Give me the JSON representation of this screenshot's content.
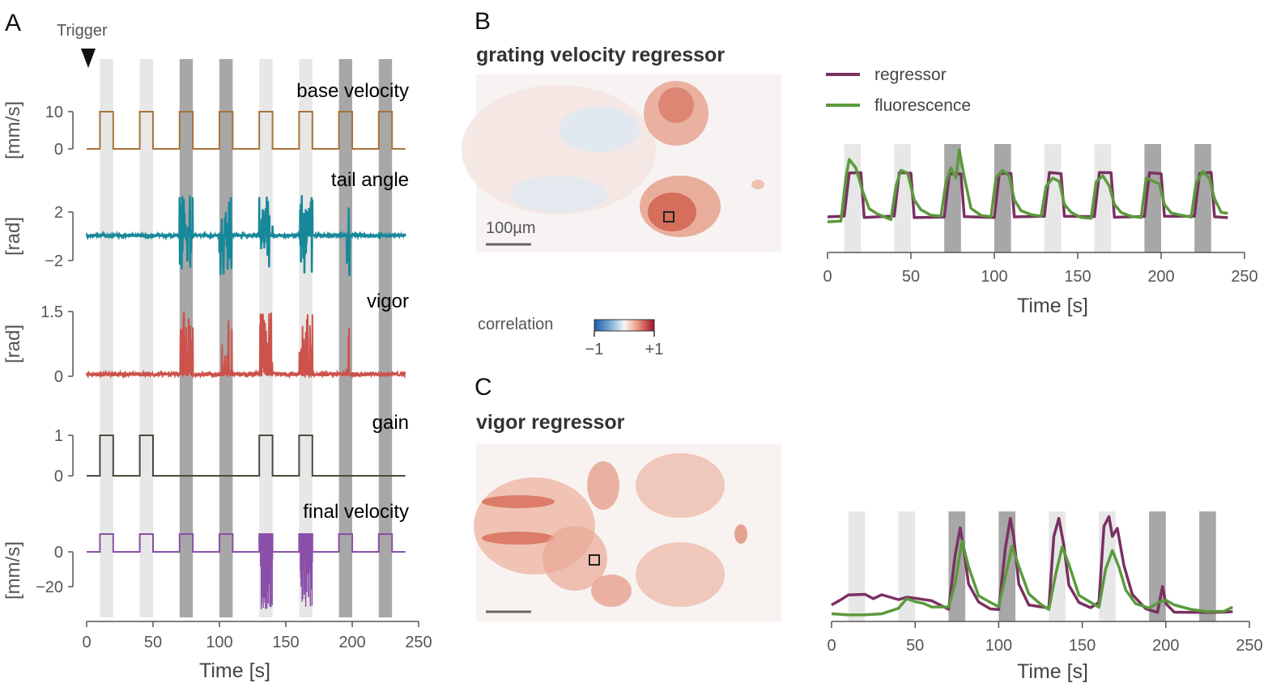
{
  "panels": {
    "A": "A",
    "B": "B",
    "C": "C"
  },
  "panel_a": {
    "trigger_label": "Trigger",
    "xlabel": "Time [s]",
    "xticks": [
      "0",
      "50",
      "100",
      "150",
      "200",
      "250"
    ]
  },
  "panel_b": {
    "title": "grating velocity regressor",
    "scalebar_label": "100µm",
    "colorbar_label": "correlation",
    "colorbar_min": "−1",
    "colorbar_max": "+1",
    "xlabel": "Time [s]",
    "xticks": [
      "0",
      "50",
      "100",
      "150",
      "200",
      "250"
    ],
    "legend": {
      "regressor": "regressor",
      "fluorescence": "fluorescence"
    }
  },
  "panel_c": {
    "title": "vigor regressor",
    "xlabel": "Time [s]",
    "xticks": [
      "0",
      "50",
      "100",
      "150",
      "200",
      "250"
    ]
  },
  "colors": {
    "base_velocity": "#a8733a",
    "tail_angle": "#17889a",
    "vigor": "#cc524b",
    "gain": "#4c4a3a",
    "final_velocity": "#8a4fa8",
    "regressor": "#7a3162",
    "fluorescence": "#5b9a3c",
    "light_stim": "#e6e7e6",
    "dark_stim": "#a7a7a7"
  },
  "chart_data": [
    {
      "type": "line",
      "panel": "A",
      "x_range": [
        0,
        250
      ],
      "stimulus_epochs": [
        {
          "start": 10,
          "end": 20,
          "shade": "light"
        },
        {
          "start": 40,
          "end": 50,
          "shade": "light"
        },
        {
          "start": 70,
          "end": 80,
          "shade": "dark"
        },
        {
          "start": 100,
          "end": 110,
          "shade": "dark"
        },
        {
          "start": 130,
          "end": 140,
          "shade": "light"
        },
        {
          "start": 160,
          "end": 170,
          "shade": "light"
        },
        {
          "start": 190,
          "end": 200,
          "shade": "dark"
        },
        {
          "start": 220,
          "end": 230,
          "shade": "dark"
        }
      ],
      "series": [
        {
          "name": "base velocity",
          "unit": "[mm/s]",
          "yticks": [
            "0",
            "10"
          ],
          "pulse_on": 10,
          "pulse_off": 0
        },
        {
          "name": "tail angle",
          "unit": "[rad]",
          "yticks": [
            "−2",
            "2"
          ],
          "baseline": 0,
          "bursts": [
            [
              70,
              80
            ],
            [
              100,
              110
            ],
            [
              130,
              140
            ],
            [
              160,
              170
            ],
            [
              196,
              198
            ]
          ]
        },
        {
          "name": "vigor",
          "unit": "[rad]",
          "yticks": [
            "0",
            "1.5"
          ],
          "baseline": 0,
          "bursts": [
            [
              70,
              80
            ],
            [
              100,
              110
            ],
            [
              130,
              140
            ],
            [
              160,
              170
            ],
            [
              196,
              198
            ]
          ]
        },
        {
          "name": "gain",
          "unit": "",
          "yticks": [
            "0",
            "1"
          ],
          "pulses": [
            [
              10,
              20,
              1
            ],
            [
              40,
              50,
              1
            ],
            [
              130,
              140,
              1
            ],
            [
              160,
              170,
              1
            ]
          ]
        },
        {
          "name": "final velocity",
          "unit": "[mm/s]",
          "yticks": [
            "0",
            "−20"
          ],
          "pulse_on": 5,
          "pulse_off": 0,
          "negative_bursts": [
            [
              130,
              140,
              -22
            ],
            [
              160,
              170,
              -20
            ]
          ]
        }
      ]
    },
    {
      "type": "line",
      "panel": "B",
      "x_range": [
        0,
        250
      ],
      "series": [
        {
          "name": "regressor",
          "x": [
            0,
            10,
            13,
            20,
            22,
            40,
            43,
            50,
            52,
            70,
            73,
            80,
            82,
            100,
            103,
            110,
            112,
            130,
            133,
            140,
            142,
            160,
            163,
            170,
            172,
            190,
            193,
            200,
            202,
            220,
            223,
            230,
            232,
            240
          ],
          "y": [
            0,
            0,
            1,
            1,
            0,
            0,
            1,
            1,
            0,
            0,
            1,
            1,
            0,
            0,
            1,
            1,
            0,
            0,
            1,
            1,
            0,
            0,
            1,
            1,
            0,
            0,
            1,
            1,
            0,
            0,
            1,
            1,
            0,
            0
          ]
        },
        {
          "name": "fluorescence",
          "x": [
            0,
            8,
            11,
            13,
            17,
            21,
            25,
            30,
            38,
            41,
            44,
            48,
            52,
            56,
            62,
            68,
            71,
            74,
            77,
            79,
            82,
            86,
            92,
            98,
            101,
            105,
            109,
            112,
            116,
            122,
            128,
            131,
            135,
            139,
            142,
            146,
            152,
            158,
            161,
            165,
            169,
            172,
            176,
            182,
            188,
            191,
            195,
            199,
            202,
            206,
            212,
            218,
            221,
            225,
            229,
            232,
            236,
            240
          ],
          "y": [
            -0.1,
            -0.1,
            0.9,
            1.3,
            1.1,
            0.6,
            0.2,
            0.05,
            -0.05,
            0.7,
            1.05,
            1.0,
            0.4,
            0.15,
            0.05,
            0.0,
            0.8,
            1.1,
            0.9,
            1.55,
            0.9,
            0.2,
            0.05,
            0.0,
            0.9,
            1.05,
            0.95,
            0.4,
            0.15,
            0.05,
            0.0,
            0.7,
            0.9,
            0.8,
            0.3,
            0.1,
            0.0,
            -0.05,
            0.8,
            0.95,
            0.7,
            0.3,
            0.1,
            0.0,
            0.0,
            0.9,
            0.8,
            0.75,
            0.3,
            0.1,
            0.05,
            0.0,
            0.8,
            1.05,
            0.9,
            0.4,
            0.1,
            0.1
          ]
        }
      ]
    },
    {
      "type": "line",
      "panel": "C",
      "x_range": [
        0,
        250
      ],
      "stimulus_epochs": [
        {
          "start": 10,
          "end": 20,
          "shade": "light"
        },
        {
          "start": 40,
          "end": 50,
          "shade": "light"
        },
        {
          "start": 70,
          "end": 80,
          "shade": "dark"
        },
        {
          "start": 100,
          "end": 110,
          "shade": "dark"
        },
        {
          "start": 130,
          "end": 140,
          "shade": "light"
        },
        {
          "start": 160,
          "end": 170,
          "shade": "light"
        },
        {
          "start": 190,
          "end": 200,
          "shade": "dark"
        },
        {
          "start": 220,
          "end": 230,
          "shade": "dark"
        }
      ],
      "series": [
        {
          "name": "regressor",
          "x": [
            0,
            5,
            10,
            20,
            25,
            30,
            40,
            45,
            50,
            60,
            70,
            74,
            77,
            79,
            82,
            88,
            95,
            100,
            104,
            107,
            109,
            112,
            118,
            125,
            130,
            133,
            136,
            139,
            142,
            148,
            155,
            160,
            163,
            166,
            168,
            171,
            175,
            180,
            188,
            195,
            198,
            200,
            205,
            215,
            225,
            235,
            240
          ],
          "y": [
            0.1,
            0.15,
            0.2,
            0.2,
            0.15,
            0.18,
            0.15,
            0.17,
            0.16,
            0.15,
            0.05,
            0.6,
            0.9,
            0.7,
            0.3,
            0.1,
            0.05,
            0.05,
            0.7,
            1.0,
            0.8,
            0.3,
            0.1,
            0.05,
            0.05,
            0.8,
            1.0,
            0.7,
            0.3,
            0.1,
            0.05,
            0.1,
            0.9,
            1.0,
            0.8,
            0.9,
            0.5,
            0.2,
            0.05,
            0.02,
            0.3,
            0.1,
            0.02,
            0.02,
            0.0,
            0.0,
            0.0
          ]
        },
        {
          "name": "fluorescence",
          "x": [
            0,
            10,
            20,
            30,
            40,
            45,
            50,
            55,
            60,
            70,
            74,
            78,
            82,
            88,
            95,
            100,
            104,
            108,
            112,
            118,
            125,
            130,
            134,
            138,
            142,
            148,
            155,
            160,
            164,
            168,
            172,
            176,
            182,
            190,
            196,
            200,
            205,
            215,
            225,
            235,
            240
          ],
          "y": [
            0.0,
            0.0,
            0.0,
            0.0,
            0.05,
            0.15,
            0.12,
            0.1,
            0.08,
            0.05,
            0.3,
            0.75,
            0.5,
            0.2,
            0.1,
            0.05,
            0.4,
            0.72,
            0.5,
            0.2,
            0.1,
            0.05,
            0.4,
            0.7,
            0.5,
            0.2,
            0.1,
            0.05,
            0.45,
            0.65,
            0.5,
            0.25,
            0.12,
            0.05,
            0.1,
            0.15,
            0.1,
            0.03,
            0.02,
            0.03,
            0.05
          ]
        }
      ]
    }
  ]
}
